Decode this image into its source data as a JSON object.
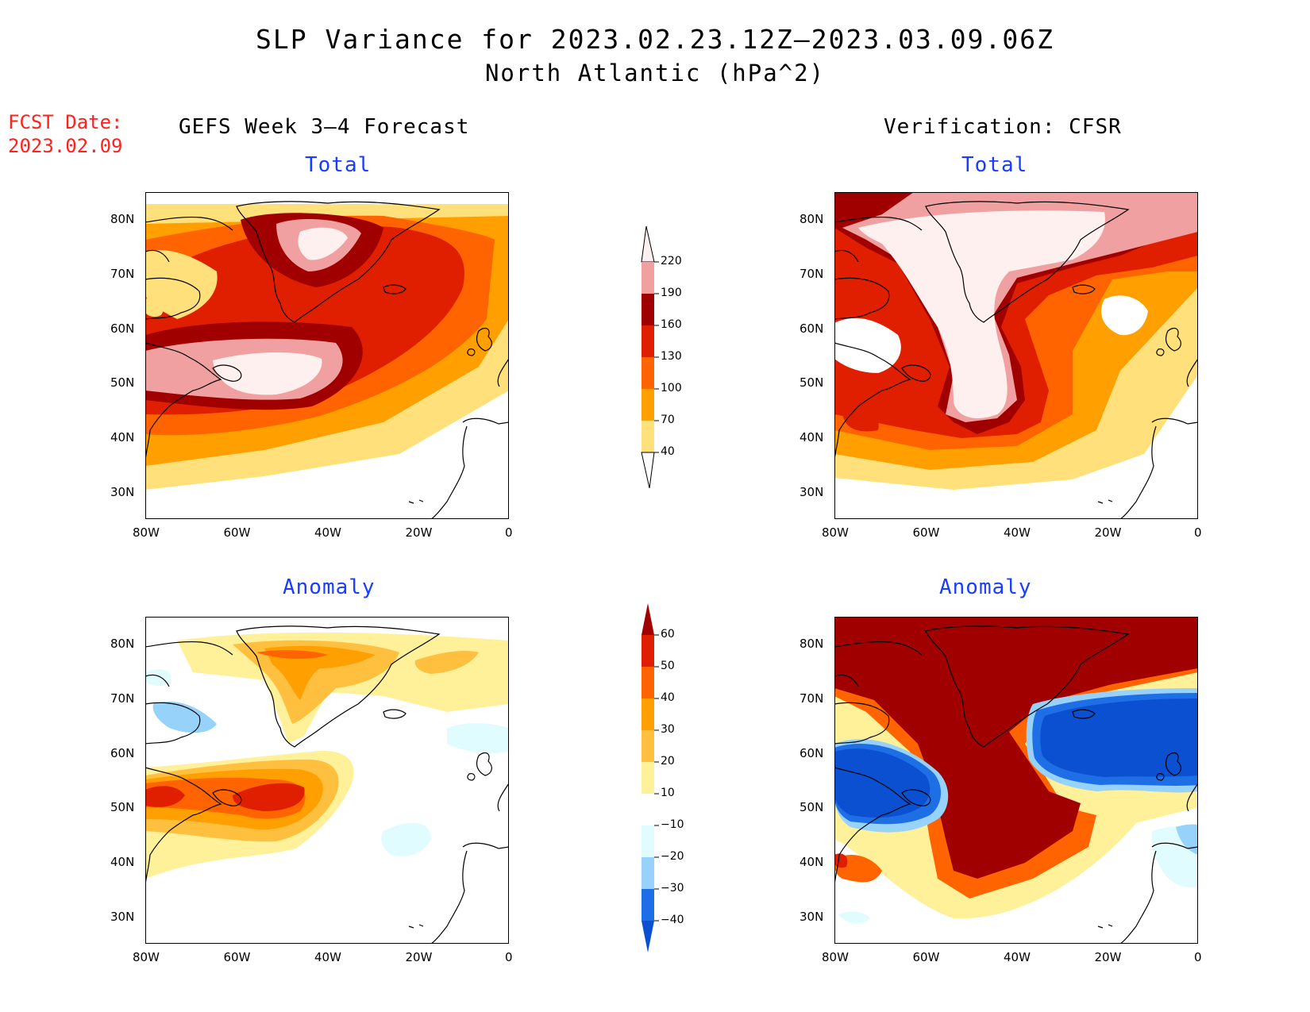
{
  "title": {
    "line1": "SLP Variance for 2023.02.23.12Z–2023.03.09.06Z",
    "line2": "North Atlantic (hPa^2)"
  },
  "forecast_date": {
    "label": "FCST Date:",
    "value": "2023.02.09"
  },
  "columns": {
    "left": "GEFS Week 3–4 Forecast",
    "right": "Verification: CFSR"
  },
  "panels": {
    "top_left": "Total",
    "top_right": "Total",
    "bottom_left": "Anomaly",
    "bottom_right": "Anomaly"
  },
  "axes": {
    "lat_labels": [
      "80N",
      "70N",
      "60N",
      "50N",
      "40N",
      "30N"
    ],
    "lon_labels": [
      "80W",
      "60W",
      "40W",
      "20W",
      "0"
    ]
  },
  "colorbars": {
    "total": {
      "levels": [
        "220",
        "190",
        "160",
        "130",
        "100",
        "70",
        "40"
      ],
      "colors": [
        "#fff0f0",
        "#f0a0a0",
        "#a00000",
        "#e01e00",
        "#ff6400",
        "#ffa000",
        "#ffe07a"
      ]
    },
    "anomaly": {
      "levels": [
        "60",
        "50",
        "40",
        "30",
        "20",
        "10",
        "−10",
        "−20",
        "−30",
        "−40"
      ],
      "colors": [
        "#a00000",
        "#e01e00",
        "#ff6400",
        "#ffa000",
        "#ffc040",
        "#fff09a",
        "#ffffff",
        "#e0fcff",
        "#96d2fa",
        "#1e6ee6",
        "#0a50d0"
      ]
    }
  },
  "chart_data": [
    {
      "type": "heatmap",
      "title": "Total",
      "panel": "GEFS Week 3–4 Forecast",
      "xlim": [
        -80,
        0
      ],
      "ylim": [
        25,
        85
      ],
      "units": "hPa^2",
      "levels": [
        40,
        70,
        100,
        130,
        160,
        190,
        220
      ]
    },
    {
      "type": "heatmap",
      "title": "Total",
      "panel": "Verification: CFSR",
      "xlim": [
        -80,
        0
      ],
      "ylim": [
        25,
        85
      ],
      "units": "hPa^2",
      "levels": [
        40,
        70,
        100,
        130,
        160,
        190,
        220
      ]
    },
    {
      "type": "heatmap",
      "title": "Anomaly",
      "panel": "GEFS Week 3–4 Forecast",
      "xlim": [
        -80,
        0
      ],
      "ylim": [
        25,
        85
      ],
      "units": "hPa^2",
      "levels": [
        -40,
        -30,
        -20,
        -10,
        10,
        20,
        30,
        40,
        50,
        60
      ]
    },
    {
      "type": "heatmap",
      "title": "Anomaly",
      "panel": "Verification: CFSR",
      "xlim": [
        -80,
        0
      ],
      "ylim": [
        25,
        85
      ],
      "units": "hPa^2",
      "levels": [
        -40,
        -30,
        -20,
        -10,
        10,
        20,
        30,
        40,
        50,
        60
      ]
    }
  ]
}
